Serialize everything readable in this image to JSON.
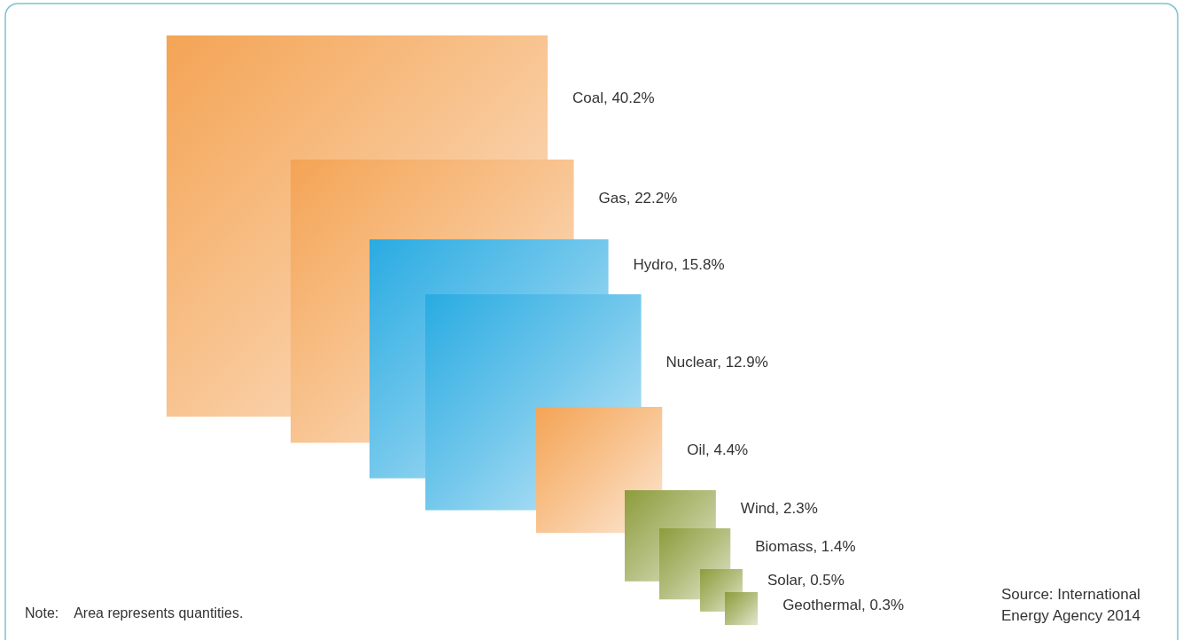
{
  "chart_data": {
    "type": "other",
    "values": [
      40.2,
      22.2,
      15.8,
      12.9,
      4.4,
      2.3,
      1.4,
      0.5,
      0.3
    ],
    "value_labels": [
      "Coal, 40.2%",
      "Gas, 22.2%",
      "Hydro, 15.8%",
      "Nuclear, 12.9%",
      "Oil, 4.4%",
      "Wind, 2.3%",
      "Biomass, 1.4%",
      "Solar, 0.5%",
      "Geothermal, 0.3%"
    ],
    "colors": [
      "#f4a455",
      "#f4a455",
      "#29abe2",
      "#29abe2",
      "#f4a455",
      "#8d9c3c",
      "#8d9c3c",
      "#8d9c3c",
      "#8d9c3c"
    ],
    "annotations": [
      "Note:    Area represents quantities.",
      "Source: International Energy Agency 2014"
    ]
  }
}
